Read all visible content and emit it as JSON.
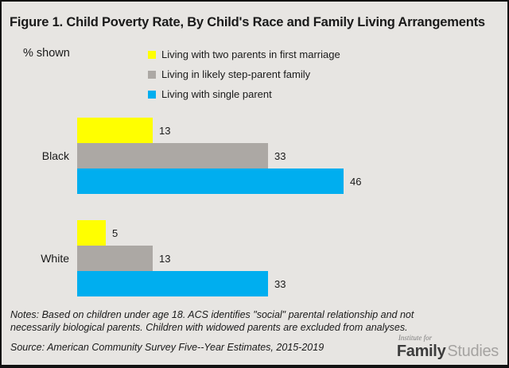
{
  "header": {
    "title": "Figure 1. Child Poverty Rate, By Child's Race and Family Living Arrangements"
  },
  "chart_data": {
    "type": "bar",
    "orientation": "horizontal",
    "pct_label": "% shown",
    "categories": [
      "Black",
      "White"
    ],
    "series": [
      {
        "name": "Living with two parents in first marriage",
        "color": "#ffff00",
        "values": [
          13,
          5
        ]
      },
      {
        "name": "Living in likely step-parent family",
        "color": "#aca8a4",
        "values": [
          33,
          13
        ]
      },
      {
        "name": "Living with single parent",
        "color": "#00aeef",
        "values": [
          46,
          33
        ]
      }
    ],
    "value_unit": "percent",
    "xlim": [
      0,
      50
    ],
    "grid": false,
    "legend_position": "top",
    "background_color": "#e7e5e2"
  },
  "notes": {
    "line1": "Notes: Based on children under age 18. ACS identifies \"social\" parental relationship and not",
    "line2": "necessarily biological parents. Children with widowed parents are excluded from analyses."
  },
  "source": {
    "text": "Source: American Community Survey Five--Year Estimates, 2015-2019"
  },
  "logo": {
    "institute": "Institute for",
    "family": "Family",
    "studies": "Studies"
  }
}
